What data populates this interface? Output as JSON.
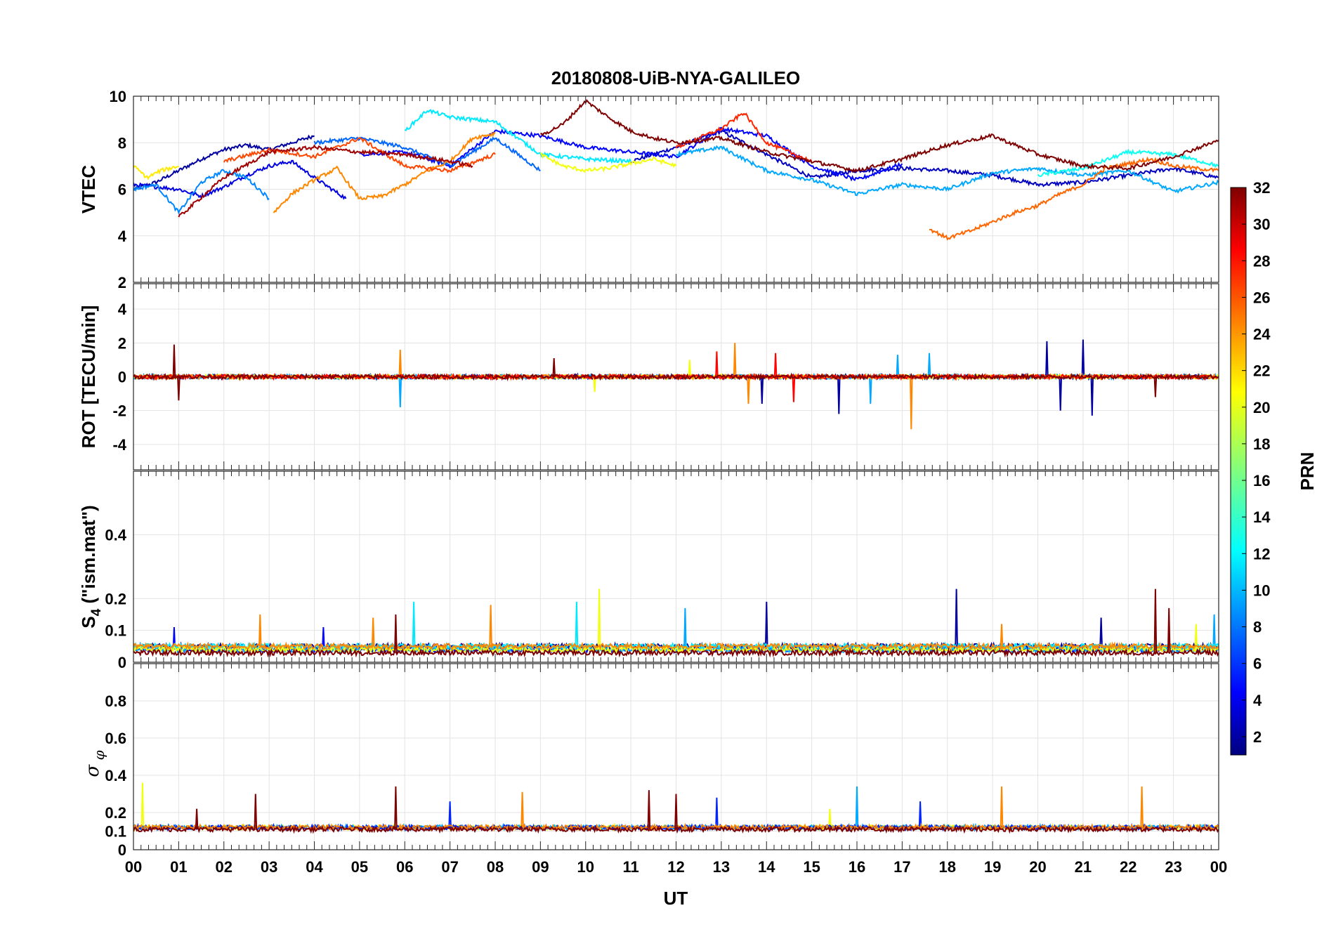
{
  "chart_data": {
    "type": "line",
    "title": "20180808-UiB-NYA-GALILEO",
    "xlabel": "UT",
    "x_ticks": [
      "00",
      "01",
      "02",
      "03",
      "04",
      "05",
      "06",
      "07",
      "08",
      "09",
      "10",
      "11",
      "12",
      "13",
      "14",
      "15",
      "16",
      "17",
      "18",
      "19",
      "20",
      "21",
      "22",
      "23",
      "00"
    ],
    "xlim_hours": [
      0,
      24
    ],
    "grid": true,
    "colorbar": {
      "label": "PRN",
      "range": [
        1,
        32
      ],
      "ticks": [
        "2",
        "4",
        "6",
        "8",
        "10",
        "12",
        "14",
        "16",
        "18",
        "20",
        "22",
        "24",
        "26",
        "28",
        "30",
        "32"
      ],
      "colormap": "jet",
      "stops": [
        "#00007f",
        "#0000ff",
        "#007fff",
        "#00ffff",
        "#7fff7f",
        "#ffff00",
        "#ff7f00",
        "#ff0000",
        "#7f0000"
      ]
    },
    "panels": [
      {
        "id": "vtec",
        "ylabel": "VTEC",
        "ylim": [
          2,
          10
        ],
        "yticks": [
          "2",
          "4",
          "6",
          "8",
          "10"
        ],
        "series": [
          {
            "prn": 2,
            "x": [
              0,
              0.5,
              1,
              1.5,
              2,
              2.5,
              3,
              3.5,
              4
            ],
            "y": [
              6.0,
              6.3,
              6.8,
              7.3,
              7.7,
              7.9,
              7.7,
              8.0,
              8.3
            ]
          },
          {
            "prn": 3,
            "x": [
              11,
              12,
              13,
              14,
              15,
              16,
              17,
              18,
              19,
              20,
              21,
              22,
              23,
              24
            ],
            "y": [
              7.2,
              7.8,
              8.5,
              7.5,
              6.5,
              6.8,
              6.9,
              6.8,
              6.6,
              6.2,
              6.3,
              6.6,
              6.9,
              6.5
            ]
          },
          {
            "prn": 4,
            "x": [
              0,
              1,
              1.5,
              2,
              2.5,
              3,
              3.5,
              4,
              4.7
            ],
            "y": [
              6.2,
              6.0,
              5.7,
              6.1,
              6.6,
              7.0,
              7.2,
              6.5,
              5.6
            ]
          },
          {
            "prn": 5,
            "x": [
              5,
              6,
              7,
              8,
              9,
              10,
              11,
              12,
              13,
              14,
              15,
              16,
              17
            ],
            "y": [
              7.5,
              7.6,
              7.0,
              8.5,
              8.3,
              7.8,
              7.6,
              7.4,
              8.6,
              8.3,
              7.0,
              6.4,
              7.1
            ]
          },
          {
            "prn": 8,
            "x": [
              4,
              5,
              6,
              7,
              8,
              9
            ],
            "y": [
              8.0,
              8.2,
              7.8,
              7.0,
              8.2,
              6.8
            ]
          },
          {
            "prn": 9,
            "x": [
              0,
              0.5,
              1,
              1.5,
              2,
              2.5,
              3
            ],
            "y": [
              6.0,
              6.2,
              5.0,
              6.3,
              6.8,
              6.5,
              5.6
            ]
          },
          {
            "prn": 10,
            "x": [
              12,
              13,
              14,
              15,
              16,
              17,
              18,
              19,
              20,
              21,
              22,
              23,
              24
            ],
            "y": [
              7.5,
              7.8,
              6.8,
              6.4,
              5.8,
              6.2,
              6.0,
              6.7,
              6.9,
              6.6,
              6.8,
              5.9,
              6.3
            ]
          },
          {
            "prn": 12,
            "x": [
              6,
              6.5,
              7,
              8,
              8.5,
              9,
              10,
              11
            ],
            "y": [
              8.5,
              9.4,
              9.1,
              8.9,
              8.2,
              7.5,
              7.3,
              7.2
            ]
          },
          {
            "prn": 13,
            "x": [
              20,
              21,
              22,
              23,
              24
            ],
            "y": [
              6.6,
              6.9,
              7.6,
              7.5,
              7.0
            ]
          },
          {
            "prn": 20,
            "x": [
              9,
              9.5,
              10,
              10.5,
              11,
              11.5,
              12
            ],
            "y": [
              7.5,
              7.0,
              6.8,
              6.9,
              7.1,
              7.3,
              7.0
            ]
          },
          {
            "prn": 21,
            "x": [
              0,
              0.3,
              0.6,
              1
            ],
            "y": [
              7.0,
              6.5,
              6.8,
              7.0
            ]
          },
          {
            "prn": 24,
            "x": [
              3.1,
              3.5,
              4,
              4.5,
              5,
              5.5,
              6,
              6.5,
              7,
              7.5,
              8
            ],
            "y": [
              5.0,
              5.8,
              6.4,
              6.9,
              5.6,
              5.7,
              6.2,
              6.8,
              7.2,
              8.2,
              8.4
            ]
          },
          {
            "prn": 25,
            "x": [
              17.6,
              18,
              18.5,
              19,
              19.5,
              20,
              20.5,
              21,
              21.5,
              22,
              22.5,
              23,
              24
            ],
            "y": [
              4.3,
              3.9,
              4.2,
              4.6,
              5.0,
              5.3,
              5.8,
              6.2,
              6.9,
              7.1,
              7.3,
              7.0,
              6.8
            ]
          },
          {
            "prn": 26,
            "x": [
              2,
              3,
              4,
              5,
              6,
              7,
              8
            ],
            "y": [
              7.2,
              7.7,
              7.4,
              8.2,
              7.0,
              6.8,
              7.5
            ]
          },
          {
            "prn": 27,
            "x": [
              12,
              13,
              13.5,
              14,
              15
            ],
            "y": [
              7.8,
              8.6,
              9.3,
              8.0,
              7.2
            ]
          },
          {
            "prn": 31,
            "x": [
              1,
              2,
              3,
              4,
              5,
              6,
              7,
              7.5
            ],
            "y": [
              4.8,
              6.5,
              7.6,
              7.8,
              7.6,
              7.5,
              7.2,
              7.0
            ]
          },
          {
            "prn": 32,
            "x": [
              9,
              9.5,
              10,
              10.5,
              11,
              11.5,
              12,
              13,
              14,
              15,
              16,
              17,
              18,
              19,
              20,
              21,
              22,
              23,
              24
            ],
            "y": [
              8.3,
              8.8,
              9.8,
              9.1,
              8.5,
              8.2,
              8.0,
              8.2,
              7.6,
              7.2,
              6.8,
              7.3,
              7.9,
              8.3,
              7.5,
              7.0,
              6.9,
              7.4,
              8.1
            ]
          }
        ]
      },
      {
        "id": "rot",
        "ylabel": "ROT [TECU/min]",
        "ylim": [
          -5.5,
          5.5
        ],
        "yticks": [
          "-4",
          "-2",
          "0",
          "2",
          "4"
        ],
        "series": [
          {
            "prn": 2,
            "x": [
              0,
              24
            ],
            "y": [
              0,
              0
            ],
            "spikes": [
              [
                13.9,
                -1.6
              ],
              [
                15.6,
                -2.2
              ],
              [
                20.2,
                2.1
              ],
              [
                20.5,
                -2.0
              ],
              [
                21.0,
                2.2
              ],
              [
                21.2,
                -2.3
              ]
            ]
          },
          {
            "prn": 10,
            "x": [
              0,
              24
            ],
            "y": [
              0,
              0
            ],
            "spikes": [
              [
                5.9,
                -1.8
              ],
              [
                16.3,
                -1.6
              ],
              [
                16.9,
                1.3
              ],
              [
                17.6,
                1.4
              ]
            ]
          },
          {
            "prn": 20,
            "x": [
              0,
              24
            ],
            "y": [
              0,
              0
            ],
            "spikes": [
              [
                12.3,
                1.0
              ],
              [
                10.2,
                -0.9
              ]
            ]
          },
          {
            "prn": 24,
            "x": [
              0,
              24
            ],
            "y": [
              0,
              0
            ],
            "spikes": [
              [
                5.9,
                1.6
              ],
              [
                13.3,
                2.0
              ],
              [
                13.6,
                -1.6
              ],
              [
                17.2,
                -3.1
              ]
            ]
          },
          {
            "prn": 28,
            "x": [
              0,
              24
            ],
            "y": [
              0,
              0
            ],
            "spikes": [
              [
                12.9,
                1.5
              ],
              [
                14.2,
                1.4
              ],
              [
                14.6,
                -1.5
              ]
            ]
          },
          {
            "prn": 32,
            "x": [
              0,
              24
            ],
            "y": [
              0,
              0
            ],
            "spikes": [
              [
                0.9,
                1.9
              ],
              [
                1.0,
                -1.4
              ],
              [
                9.3,
                1.1
              ],
              [
                22.6,
                -1.2
              ]
            ]
          }
        ]
      },
      {
        "id": "s4",
        "ylabel": "S4 (\"ism.mat\")",
        "ylim": [
          0,
          0.6
        ],
        "yticks": [
          "0",
          "0.1",
          "0.2",
          "0.4"
        ],
        "series": [
          {
            "prn": 2,
            "x": [
              0,
              24
            ],
            "y": [
              0.05,
              0.05
            ],
            "spikes": [
              [
                14.0,
                0.19
              ],
              [
                18.2,
                0.23
              ],
              [
                21.4,
                0.14
              ]
            ]
          },
          {
            "prn": 5,
            "x": [
              0,
              24
            ],
            "y": [
              0.04,
              0.04
            ],
            "spikes": [
              [
                0.9,
                0.11
              ],
              [
                4.2,
                0.11
              ]
            ]
          },
          {
            "prn": 10,
            "x": [
              0,
              24
            ],
            "y": [
              0.04,
              0.04
            ],
            "spikes": [
              [
                12.2,
                0.17
              ],
              [
                23.9,
                0.15
              ]
            ]
          },
          {
            "prn": 12,
            "x": [
              0,
              24
            ],
            "y": [
              0.05,
              0.05
            ],
            "spikes": [
              [
                6.2,
                0.19
              ],
              [
                9.8,
                0.19
              ]
            ]
          },
          {
            "prn": 20,
            "x": [
              0,
              24
            ],
            "y": [
              0.04,
              0.04
            ],
            "spikes": [
              [
                10.3,
                0.23
              ],
              [
                23.5,
                0.12
              ]
            ]
          },
          {
            "prn": 24,
            "x": [
              0,
              24
            ],
            "y": [
              0.05,
              0.05
            ],
            "spikes": [
              [
                2.8,
                0.15
              ],
              [
                5.3,
                0.14
              ],
              [
                7.9,
                0.18
              ],
              [
                19.2,
                0.12
              ]
            ]
          },
          {
            "prn": 32,
            "x": [
              0,
              24
            ],
            "y": [
              0.03,
              0.03
            ],
            "spikes": [
              [
                5.8,
                0.15
              ],
              [
                22.6,
                0.23
              ],
              [
                22.9,
                0.17
              ]
            ]
          }
        ]
      },
      {
        "id": "sigma",
        "ylabel": "σ_φ",
        "ylim": [
          0,
          1.0
        ],
        "yticks": [
          "0",
          "0.1",
          "0.2",
          "0.4",
          "0.6",
          "0.8"
        ],
        "series": [
          {
            "prn": 20,
            "x": [
              0,
              24
            ],
            "y": [
              0.12,
              0.12
            ],
            "spikes": [
              [
                0.2,
                0.36
              ],
              [
                15.4,
                0.22
              ]
            ]
          },
          {
            "prn": 10,
            "x": [
              0,
              24
            ],
            "y": [
              0.12,
              0.12
            ],
            "spikes": [
              [
                16.0,
                0.34
              ]
            ]
          },
          {
            "prn": 6,
            "x": [
              0,
              24
            ],
            "y": [
              0.12,
              0.12
            ],
            "spikes": [
              [
                7.0,
                0.26
              ],
              [
                12.9,
                0.28
              ],
              [
                17.4,
                0.26
              ]
            ]
          },
          {
            "prn": 24,
            "x": [
              0,
              24
            ],
            "y": [
              0.12,
              0.12
            ],
            "spikes": [
              [
                8.6,
                0.31
              ],
              [
                19.2,
                0.34
              ],
              [
                22.3,
                0.34
              ]
            ]
          },
          {
            "prn": 32,
            "x": [
              0,
              24
            ],
            "y": [
              0.11,
              0.11
            ],
            "spikes": [
              [
                1.4,
                0.22
              ],
              [
                2.7,
                0.3
              ],
              [
                5.8,
                0.34
              ],
              [
                11.4,
                0.32
              ],
              [
                12.0,
                0.3
              ]
            ]
          }
        ]
      }
    ]
  }
}
